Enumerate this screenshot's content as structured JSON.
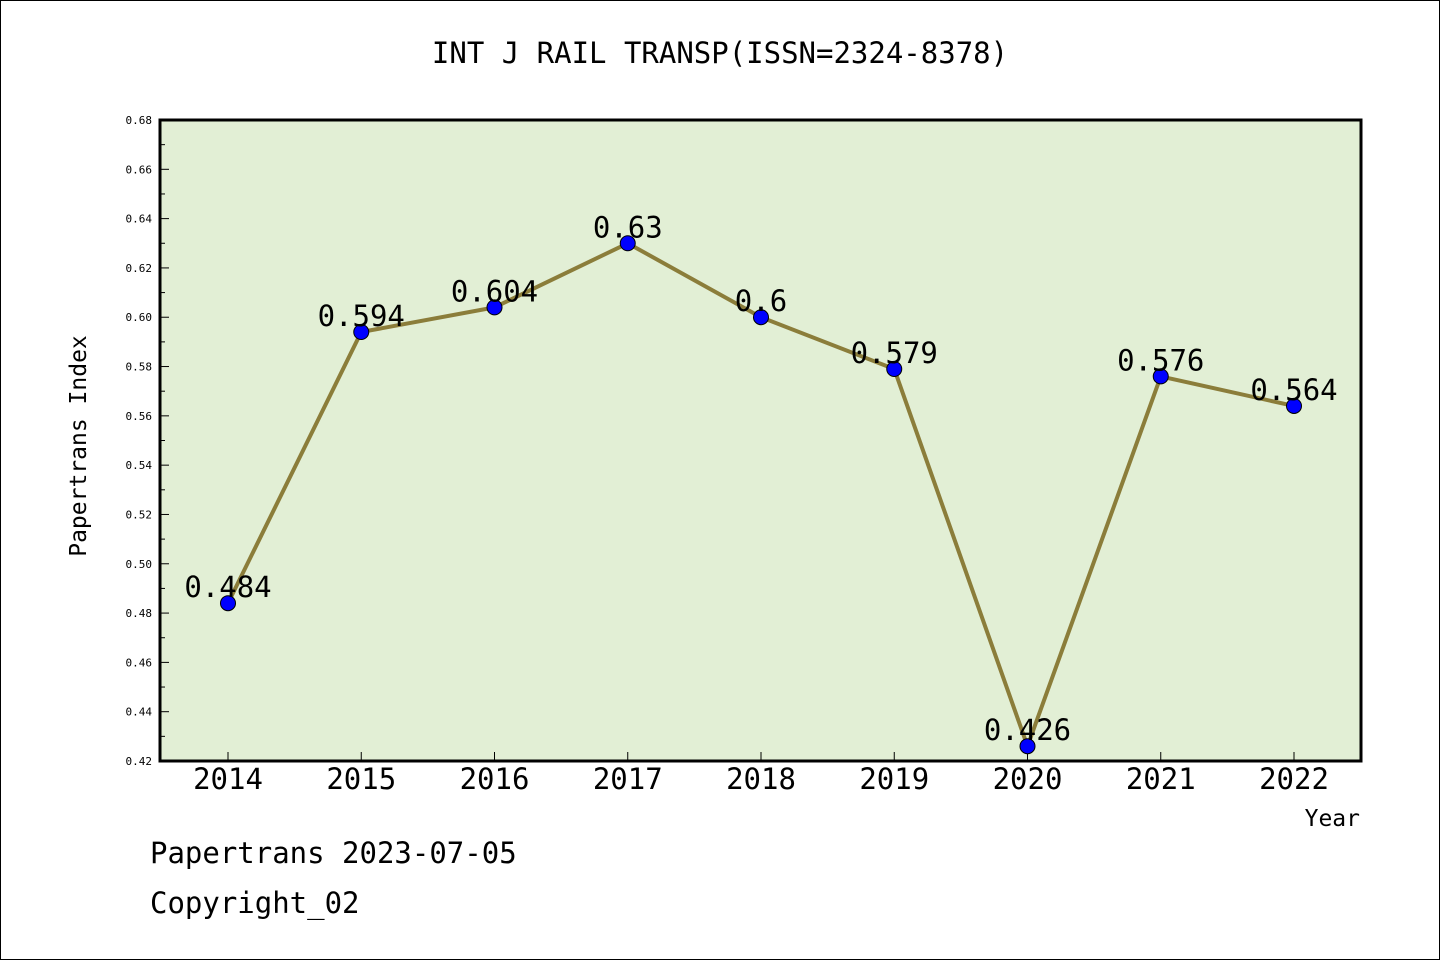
{
  "chart_data": {
    "type": "line",
    "title": "INT J RAIL TRANSP(ISSN=2324-8378)",
    "xlabel": "Year",
    "ylabel": "Papertrans Index",
    "categories": [
      "2014",
      "2015",
      "2016",
      "2017",
      "2018",
      "2019",
      "2020",
      "2021",
      "2022"
    ],
    "series": [
      {
        "values": [
          0.484,
          0.594,
          0.604,
          0.63,
          0.6,
          0.579,
          0.426,
          0.576,
          0.564
        ],
        "labels": [
          "0.484",
          "0.594",
          "0.604",
          "0.63",
          "0.6",
          "0.579",
          "0.426",
          "0.576",
          "0.564"
        ]
      }
    ],
    "ylim": [
      0.42,
      0.68
    ],
    "yticks": [
      "0.42",
      "0.44",
      "0.46",
      "0.48",
      "0.50",
      "0.52",
      "0.54",
      "0.56",
      "0.58",
      "0.60",
      "0.62",
      "0.64",
      "0.66",
      "0.68"
    ],
    "colors": {
      "plot_bg": "#e2efd5",
      "line": "#8b7d3a",
      "marker": "#0000ff"
    },
    "grid": false
  },
  "footer": {
    "line1": "Papertrans 2023-07-05",
    "line2": "Copyright_02"
  }
}
